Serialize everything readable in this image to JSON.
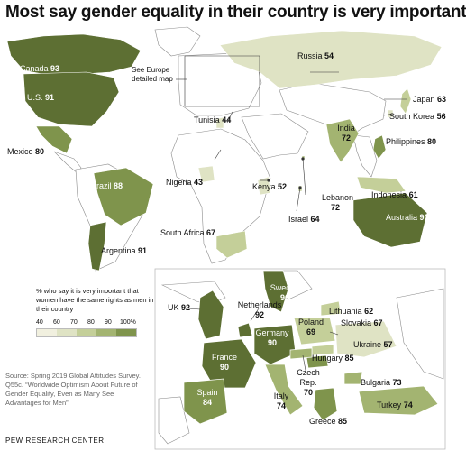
{
  "title": "Most say gender equality in their country is very important",
  "europe_note": "See Europe detailed map",
  "legend": {
    "title": "% who say it is very important that women have the same rights as men in their country",
    "ticks": [
      "40",
      "60",
      "70",
      "80",
      "90",
      "100%"
    ],
    "colors": [
      "#f1f0df",
      "#dfe3c4",
      "#c4cf99",
      "#a3b471",
      "#7f944c",
      "#5d6f33"
    ]
  },
  "colors": {
    "ocean": "#ffffff",
    "no_data": "#ffffff",
    "border": "#8c8c8c"
  },
  "world": [
    {
      "name": "Canada",
      "value": "93"
    },
    {
      "name": "U.S.",
      "value": "91"
    },
    {
      "name": "Mexico",
      "value": "80"
    },
    {
      "name": "Brazil",
      "value": "88"
    },
    {
      "name": "Argentina",
      "value": "91"
    },
    {
      "name": "Russia",
      "value": "54"
    },
    {
      "name": "Japan",
      "value": "63"
    },
    {
      "name": "South Korea",
      "value": "56"
    },
    {
      "name": "India",
      "value": "72"
    },
    {
      "name": "Philippines",
      "value": "80"
    },
    {
      "name": "Tunisia",
      "value": "44"
    },
    {
      "name": "Lebanon",
      "value": "72"
    },
    {
      "name": "Nigeria",
      "value": "43"
    },
    {
      "name": "Kenya",
      "value": "52"
    },
    {
      "name": "Israel",
      "value": "64"
    },
    {
      "name": "Indonesia",
      "value": "61"
    },
    {
      "name": "South Africa",
      "value": "67"
    },
    {
      "name": "Australia",
      "value": "91"
    }
  ],
  "europe": [
    {
      "name": "Sweden",
      "value": "96"
    },
    {
      "name": "UK",
      "value": "92"
    },
    {
      "name": "Netherlands",
      "value": "92"
    },
    {
      "name": "Lithuania",
      "value": "62"
    },
    {
      "name": "Poland",
      "value": "69"
    },
    {
      "name": "Slovakia",
      "value": "67"
    },
    {
      "name": "Germany",
      "value": "90"
    },
    {
      "name": "Ukraine",
      "value": "57"
    },
    {
      "name": "France",
      "value": "90"
    },
    {
      "name": "Hungary",
      "value": "85"
    },
    {
      "name": "Czech Rep.",
      "value": "70"
    },
    {
      "name": "Bulgaria",
      "value": "73"
    },
    {
      "name": "Spain",
      "value": "84"
    },
    {
      "name": "Italy",
      "value": "74"
    },
    {
      "name": "Turkey",
      "value": "74"
    },
    {
      "name": "Greece",
      "value": "85"
    }
  ],
  "source": "Source: Spring 2019 Global Attitudes Survey. Q55c. “Worldwide Optimism About Future of Gender Equality, Even as Many See Advantages for Men”",
  "credit": "PEW RESEARCH CENTER"
}
